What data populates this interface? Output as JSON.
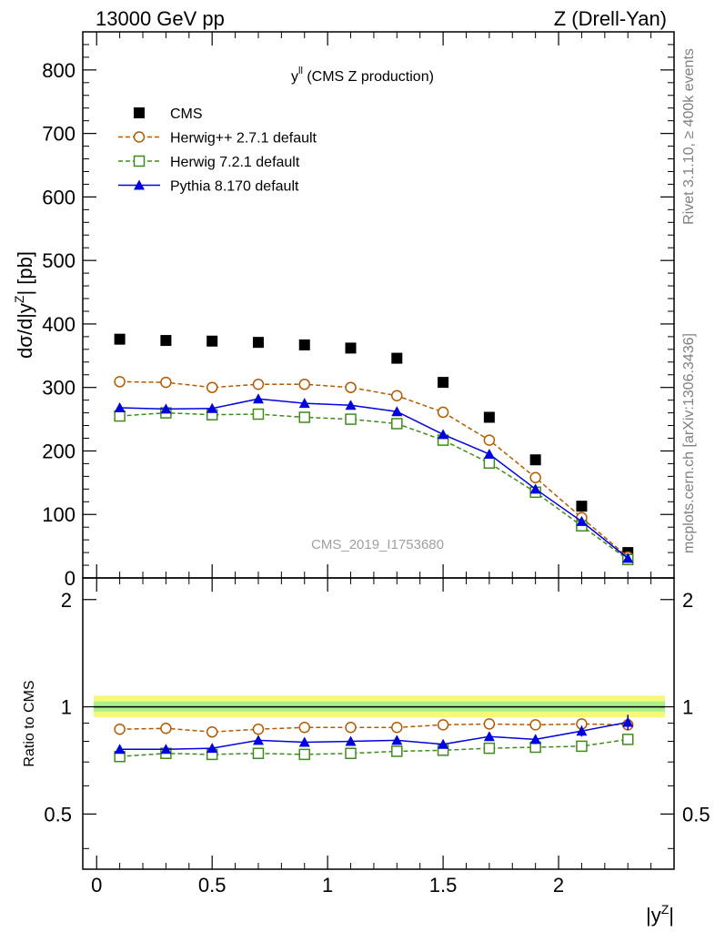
{
  "header": {
    "left": "13000 GeV pp",
    "right": "Z (Drell-Yan)"
  },
  "side_labels": {
    "rivet": "Rivet 3.1.10, ≥ 400k events",
    "mcplots": "mcplots.cern.ch [arXiv:1306.3436]"
  },
  "chart_data": [
    {
      "type": "scatter",
      "panel": "main",
      "title_main": "y",
      "title_sup": "ll",
      "title_rest": " (CMS Z production)",
      "ylabel": "dσ/d|y",
      "ylabel_sup": "Z",
      "ylabel_end": "| [pb]",
      "watermark": "CMS_2019_I1753680",
      "xlim": [
        -0.06,
        2.5
      ],
      "ylim": [
        0,
        860
      ],
      "yticks": [
        0,
        100,
        200,
        300,
        400,
        500,
        600,
        700,
        800
      ],
      "x": [
        0.1,
        0.3,
        0.5,
        0.7,
        0.9,
        1.1,
        1.3,
        1.5,
        1.7,
        1.9,
        2.1,
        2.3
      ],
      "series": [
        {
          "name": "CMS",
          "color": "#000000",
          "marker": "square-filled",
          "line": "none",
          "values": [
            376,
            374,
            373,
            371,
            367,
            362,
            346,
            308,
            253,
            186,
            113,
            40
          ]
        },
        {
          "name": "Herwig++ 2.7.1 default",
          "color": "#b35a00",
          "marker": "circle-open",
          "line": "dashed",
          "values": [
            309,
            308,
            300,
            305,
            305,
            300,
            287,
            261,
            217,
            158,
            95,
            33
          ]
        },
        {
          "name": "Herwig 7.2.1 default",
          "color": "#3d8c1a",
          "marker": "square-open",
          "line": "dashed",
          "values": [
            255,
            260,
            257,
            258,
            253,
            250,
            243,
            217,
            181,
            135,
            82,
            29
          ]
        },
        {
          "name": "Pythia 8.170 default",
          "color": "#0000e0",
          "marker": "triangle-filled",
          "line": "solid",
          "values": [
            268,
            266,
            267,
            282,
            275,
            272,
            262,
            226,
            195,
            140,
            89,
            31
          ],
          "errors": [
            6,
            5,
            6,
            6,
            6,
            6,
            6,
            6,
            5,
            5,
            4,
            3
          ]
        }
      ]
    },
    {
      "type": "scatter",
      "panel": "ratio",
      "ylabel": "Ratio to CMS",
      "xlabel": "|y",
      "xlabel_sup": "Z",
      "xlabel_end": "|",
      "xlim": [
        -0.06,
        2.5
      ],
      "ylim": [
        0.35,
        2.3
      ],
      "scale": "log",
      "yticks": [
        0.5,
        1,
        2
      ],
      "xticks": [
        0,
        0.5,
        1,
        1.5,
        2
      ],
      "band": {
        "lower": 0.935,
        "upper": 1.075,
        "inner_lower": 0.97,
        "inner_upper": 1.035
      },
      "x": [
        0.1,
        0.3,
        0.5,
        0.7,
        0.9,
        1.1,
        1.3,
        1.5,
        1.7,
        1.9,
        2.1,
        2.3
      ],
      "series": [
        {
          "name": "Herwig++ 2.7.1 default",
          "color": "#b35a00",
          "marker": "circle-open",
          "line": "dashed",
          "values": [
            0.865,
            0.87,
            0.85,
            0.865,
            0.875,
            0.875,
            0.875,
            0.89,
            0.895,
            0.89,
            0.895,
            0.89
          ]
        },
        {
          "name": "Herwig 7.2.1 default",
          "color": "#3d8c1a",
          "marker": "square-open",
          "line": "dashed",
          "values": [
            0.725,
            0.74,
            0.735,
            0.74,
            0.735,
            0.74,
            0.75,
            0.755,
            0.765,
            0.77,
            0.775,
            0.81
          ]
        },
        {
          "name": "Pythia 8.170 default",
          "color": "#0000e0",
          "marker": "triangle-filled",
          "line": "solid",
          "values": [
            0.76,
            0.76,
            0.765,
            0.805,
            0.795,
            0.8,
            0.805,
            0.785,
            0.825,
            0.81,
            0.855,
            0.905
          ],
          "errors": [
            0.015,
            0.012,
            0.015,
            0.015,
            0.015,
            0.015,
            0.015,
            0.018,
            0.02,
            0.025,
            0.03,
            0.045
          ]
        }
      ]
    }
  ]
}
